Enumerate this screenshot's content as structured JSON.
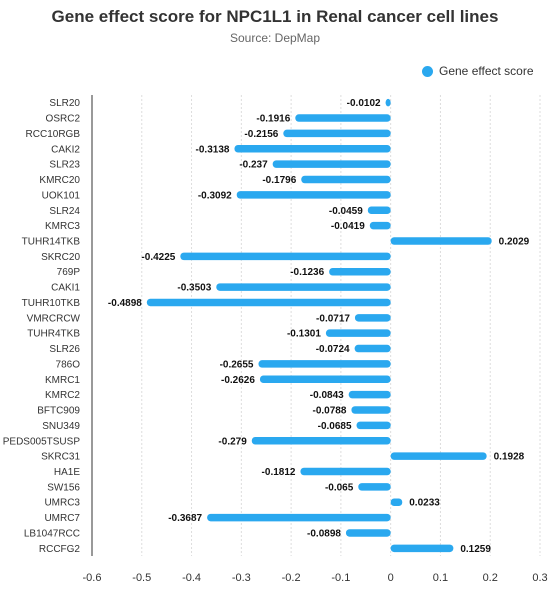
{
  "chart_data": {
    "type": "bar",
    "orientation": "horizontal",
    "title": "Gene effect score for NPC1L1 in Renal cancer cell lines",
    "subtitle": "Source: DepMap",
    "legend": "top-right",
    "grid": true,
    "bar_color": "#2aa8ef",
    "xlim": [
      -0.6,
      0.3
    ],
    "xticks": [
      -0.6,
      -0.5,
      -0.4,
      -0.3,
      -0.2,
      -0.1,
      0,
      0.1,
      0.2,
      0.3
    ],
    "series": [
      {
        "name": "Gene effect score",
        "values": [
          -0.0102,
          -0.1916,
          -0.2156,
          -0.3138,
          -0.237,
          -0.1796,
          -0.3092,
          -0.0459,
          -0.0419,
          0.2029,
          -0.4225,
          -0.1236,
          -0.3503,
          -0.4898,
          -0.0717,
          -0.1301,
          -0.0724,
          -0.2655,
          -0.2626,
          -0.0843,
          -0.0788,
          -0.0685,
          -0.279,
          0.1928,
          -0.1812,
          -0.065,
          0.0233,
          -0.3687,
          -0.0898,
          0.1259
        ]
      }
    ],
    "categories": [
      "SLR20",
      "OSRC2",
      "RCC10RGB",
      "CAKI2",
      "SLR23",
      "KMRC20",
      "UOK101",
      "SLR24",
      "KMRC3",
      "TUHR14TKB",
      "SKRC20",
      "769P",
      "CAKI1",
      "TUHR10TKB",
      "VMRCRCW",
      "TUHR4TKB",
      "SLR26",
      "786O",
      "KMRC1",
      "KMRC2",
      "BFTC909",
      "SNU349",
      "PEDS005TSUSP",
      "SKRC31",
      "HA1E",
      "SW156",
      "UMRC3",
      "UMRC7",
      "LB1047RCC",
      "RCCFG2"
    ]
  }
}
